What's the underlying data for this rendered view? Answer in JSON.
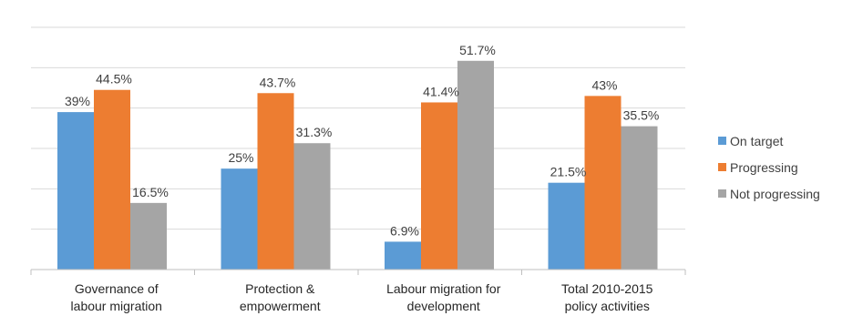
{
  "chart_data": {
    "type": "bar",
    "categories": [
      [
        "Governance of",
        "labour migration"
      ],
      [
        "Protection &",
        "empowerment"
      ],
      [
        "Labour migration for",
        "development"
      ],
      [
        "Total 2010-2015",
        "policy activities"
      ]
    ],
    "series": [
      {
        "name": "On target",
        "color": "#5b9bd5",
        "values": [
          39,
          25,
          6.9,
          21.5
        ],
        "labels": [
          "39%",
          "25%",
          "6.9%",
          "21.5%"
        ]
      },
      {
        "name": "Progressing",
        "color": "#ed7d31",
        "values": [
          44.5,
          43.7,
          41.4,
          43
        ],
        "labels": [
          "44.5%",
          "43.7%",
          "41.4%",
          "43%"
        ]
      },
      {
        "name": "Not progressing",
        "color": "#a5a5a5",
        "values": [
          16.5,
          31.3,
          51.7,
          35.5
        ],
        "labels": [
          "16.5%",
          "31.3%",
          "51.7%",
          "35.5%"
        ]
      }
    ],
    "ylim": [
      0,
      60
    ],
    "y_gridlines": [
      10,
      20,
      30,
      40,
      50,
      60
    ],
    "grid": true,
    "legend": "right",
    "title": "",
    "xlabel": "",
    "ylabel": ""
  }
}
